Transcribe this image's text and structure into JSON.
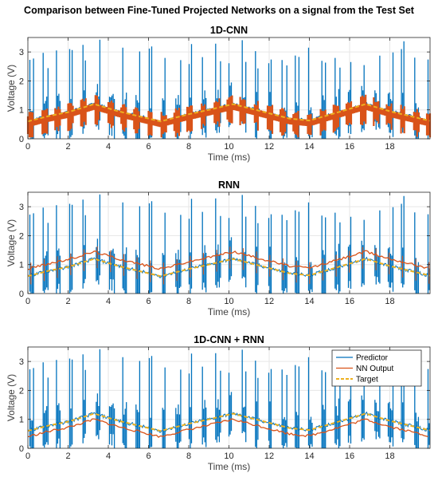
{
  "title": "Comparison between Fine-Tuned Projected Networks on a signal from the Test Set",
  "colors": {
    "predictor": "#0072BD",
    "nn_output": "#D95319",
    "target": "#EDB120",
    "grid": "#E6E6E6",
    "axis": "#262626"
  },
  "chart_data": [
    {
      "type": "line",
      "title": "1D-CNN",
      "xlabel": "Time (ms)",
      "ylabel": "Voltage (V)",
      "xlim": [
        0,
        20
      ],
      "ylim": [
        0,
        3.5
      ],
      "xticks": [
        "0",
        "2",
        "4",
        "6",
        "8",
        "10",
        "12",
        "14",
        "16",
        "18"
      ],
      "yticks": [
        "0",
        "1",
        "2",
        "3"
      ],
      "grid": true,
      "legend": null,
      "series": [
        {
          "key": "predictor",
          "style": "spiky-signal",
          "spike_max": 3.5
        },
        {
          "key": "nn_output",
          "style": "tracks-target",
          "band": [
            0.2,
            0.9
          ]
        },
        {
          "key": "target",
          "style": "dashed",
          "x": [
            0,
            1,
            2,
            3.3,
            4.5,
            6,
            6.6,
            8,
            9,
            10.2,
            11.5,
            13,
            14,
            15,
            16.8,
            18,
            20
          ],
          "y": [
            0.6,
            0.78,
            0.92,
            1.2,
            0.95,
            0.7,
            0.6,
            0.85,
            1.0,
            1.2,
            0.97,
            0.7,
            0.63,
            0.83,
            1.2,
            0.95,
            0.62
          ]
        }
      ]
    },
    {
      "type": "line",
      "title": "RNN",
      "xlabel": "Time (ms)",
      "ylabel": "Voltage (V)",
      "xlim": [
        0,
        20
      ],
      "ylim": [
        0,
        3.5
      ],
      "xticks": [
        "0",
        "2",
        "4",
        "6",
        "8",
        "10",
        "12",
        "14",
        "16",
        "18"
      ],
      "yticks": [
        "0",
        "1",
        "2",
        "3"
      ],
      "grid": true,
      "legend": null,
      "series": [
        {
          "key": "predictor",
          "style": "spiky-signal",
          "spike_max": 3.5
        },
        {
          "key": "nn_output",
          "style": "tracks-target-high",
          "offset": 0.25
        },
        {
          "key": "target",
          "style": "dashed",
          "x": [
            0,
            1,
            2,
            3.3,
            4.5,
            6,
            6.6,
            8,
            9,
            10.2,
            11.5,
            13,
            14,
            15,
            16.8,
            18,
            20
          ],
          "y": [
            0.6,
            0.78,
            0.92,
            1.2,
            0.95,
            0.7,
            0.6,
            0.85,
            1.0,
            1.2,
            0.97,
            0.7,
            0.63,
            0.83,
            1.2,
            0.95,
            0.62
          ]
        }
      ]
    },
    {
      "type": "line",
      "title": "1D-CNN + RNN",
      "xlabel": "Time (ms)",
      "ylabel": "Voltage (V)",
      "xlim": [
        0,
        20
      ],
      "ylim": [
        0,
        3.5
      ],
      "xticks": [
        "0",
        "2",
        "4",
        "6",
        "8",
        "10",
        "12",
        "14",
        "16",
        "18"
      ],
      "yticks": [
        "0",
        "1",
        "2",
        "3"
      ],
      "grid": true,
      "legend": "top-right",
      "series": [
        {
          "key": "predictor",
          "name": "Predictor",
          "style": "spiky-signal",
          "spike_max": 3.5
        },
        {
          "key": "nn_output",
          "name": "NN Output",
          "style": "tracks-target-low",
          "offset": -0.2
        },
        {
          "key": "target",
          "name": "Target",
          "style": "dashed",
          "x": [
            0,
            1,
            2,
            3.3,
            4.5,
            6,
            6.6,
            8,
            9,
            10.2,
            11.5,
            13,
            14,
            15,
            16.8,
            18,
            20
          ],
          "y": [
            0.6,
            0.78,
            0.92,
            1.2,
            0.95,
            0.7,
            0.6,
            0.85,
            1.0,
            1.2,
            0.97,
            0.7,
            0.63,
            0.83,
            1.2,
            0.95,
            0.62
          ]
        }
      ]
    }
  ]
}
